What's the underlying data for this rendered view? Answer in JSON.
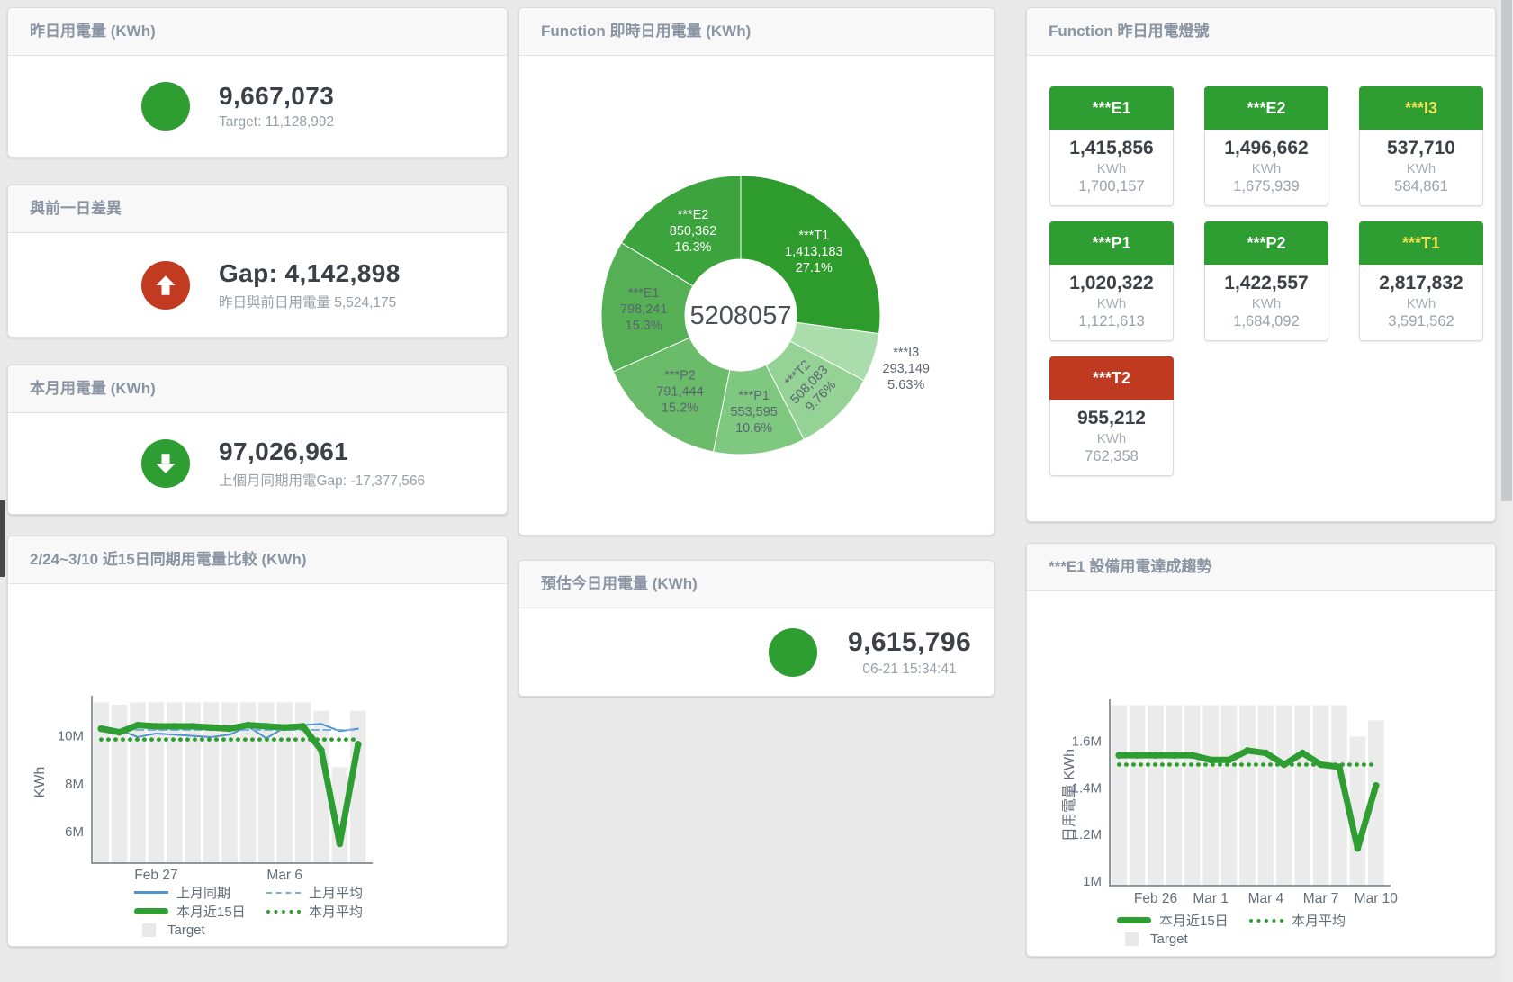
{
  "colors": {
    "green": "#2f9e32",
    "red": "#c23a20",
    "tile_red": "#c03a21",
    "yellow_label": "#f0e355",
    "blue_line": "#5094ce",
    "blue_dashed": "#7cb0dc",
    "target_bar": "#ebebeb",
    "header_text": "#8a94a2"
  },
  "cards": {
    "yesterday": {
      "title": "昨日用電量 (KWh)",
      "value": "9,667,073",
      "sub": "Target: 11,128,992",
      "status_icon": "green-circle"
    },
    "day_gap": {
      "title": "與前一日差異",
      "value": "Gap: 4,142,898",
      "sub": "昨日與前日用電量 5,524,175",
      "status_icon": "red-circle-up-arrow"
    },
    "month": {
      "title": "本月用電量 (KWh)",
      "value": "97,026,961",
      "sub": "上個月同期用電Gap: -17,377,566",
      "status_icon": "green-circle-down-arrow"
    },
    "realtime": {
      "title": "Function 即時日用電量 (KWh)"
    },
    "lights": {
      "title": "Function 昨日用電燈號",
      "tiles": [
        {
          "name": "***E1",
          "value": "1,415,856",
          "unit": "KWh",
          "target": "1,700,157",
          "status": "green",
          "text": "white"
        },
        {
          "name": "***E2",
          "value": "1,496,662",
          "unit": "KWh",
          "target": "1,675,939",
          "status": "green",
          "text": "white"
        },
        {
          "name": "***I3",
          "value": "537,710",
          "unit": "KWh",
          "target": "584,861",
          "status": "green",
          "text": "yellow"
        },
        {
          "name": "***P1",
          "value": "1,020,322",
          "unit": "KWh",
          "target": "1,121,613",
          "status": "green",
          "text": "white"
        },
        {
          "name": "***P2",
          "value": "1,422,557",
          "unit": "KWh",
          "target": "1,684,092",
          "status": "green",
          "text": "white"
        },
        {
          "name": "***T1",
          "value": "2,817,832",
          "unit": "KWh",
          "target": "3,591,562",
          "status": "green",
          "text": "yellow"
        },
        {
          "name": "***T2",
          "value": "955,212",
          "unit": "KWh",
          "target": "762,358",
          "status": "red",
          "text": "white"
        }
      ]
    },
    "compare": {
      "title": "2/24~3/10 近15日同期用電量比較 (KWh)"
    },
    "today": {
      "title": "預估今日用電量 (KWh)",
      "value": "9,615,796",
      "sub": "06-21 15:34:41",
      "status_icon": "green-circle"
    },
    "e1trend": {
      "title": "***E1 設備用電達成趨勢"
    }
  },
  "chart_data": [
    {
      "type": "pie",
      "title": "Function 即時日用電量 (KWh)",
      "center_label": "5208057",
      "legend_position": "none",
      "slices": [
        {
          "name": "***T1",
          "value": 1413183,
          "value_label": "1,413,183",
          "pct": "27.1%",
          "color": "#2d9c2d",
          "label_color": "#ffffff"
        },
        {
          "name": "***I3",
          "value": 293149,
          "value_label": "293,149",
          "pct": "5.63%",
          "color": "#abdcab",
          "label_color": "#5b6570",
          "outside": true
        },
        {
          "name": "***T2",
          "value": 508083,
          "value_label": "508,083",
          "pct": "9.76%",
          "color": "#95d295",
          "label_color": "#5b6570",
          "label_rotate": -46
        },
        {
          "name": "***P1",
          "value": 553595,
          "value_label": "553,595",
          "pct": "10.6%",
          "color": "#7fc87f",
          "label_color": "#5b6570"
        },
        {
          "name": "***P2",
          "value": 791444,
          "value_label": "791,444",
          "pct": "15.2%",
          "color": "#6abc6a",
          "label_color": "#5b6570"
        },
        {
          "name": "***E1",
          "value": 798241,
          "value_label": "798,241",
          "pct": "15.3%",
          "color": "#55b055",
          "label_color": "#5b6570"
        },
        {
          "name": "***E2",
          "value": 850362,
          "value_label": "850,362",
          "pct": "16.3%",
          "color": "#3ca43c",
          "label_color": "#ffffff"
        }
      ]
    },
    {
      "type": "line",
      "title": "2/24~3/10 近15日同期用電量比較 (KWh)",
      "ylabel": "KWh",
      "ymin": 4.69,
      "ymax": 11.45,
      "grid": false,
      "yticks": [
        {
          "v": 6,
          "label": "6M"
        },
        {
          "v": 8,
          "label": "8M"
        },
        {
          "v": 10,
          "label": "10M"
        }
      ],
      "x": [
        "Feb 24",
        "Feb 25",
        "Feb 26",
        "Feb 27",
        "Feb 28",
        "Mar 1",
        "Mar 2",
        "Mar 3",
        "Mar 4",
        "Mar 5",
        "Mar 6",
        "Mar 7",
        "Mar 8",
        "Mar 9",
        "Mar 10"
      ],
      "x_ticks": [
        "Feb 27",
        "Mar 6"
      ],
      "series": [
        {
          "name": "Target",
          "kind": "bar",
          "color": "#ebebeb",
          "values": [
            11.4,
            11.3,
            11.4,
            11.4,
            11.4,
            11.4,
            11.4,
            11.4,
            11.4,
            11.4,
            11.4,
            11.4,
            11.05,
            8.7,
            11.05
          ]
        },
        {
          "name": "上月同期",
          "kind": "line",
          "dash": "solid",
          "width": 2,
          "color": "#5094ce",
          "values": [
            10.4,
            10.25,
            9.95,
            10.1,
            10.05,
            10.0,
            9.95,
            10.05,
            10.4,
            9.9,
            10.35,
            10.45,
            10.5,
            10.2,
            10.3
          ]
        },
        {
          "name": "上月平均",
          "kind": "line",
          "dash": "dashed",
          "width": 2,
          "color": "#7cb0dc",
          "values": [
            10.25,
            10.25,
            10.25,
            10.25,
            10.25,
            10.25,
            10.25,
            10.25,
            10.25,
            10.25,
            10.25,
            10.25,
            10.25,
            10.25,
            10.25
          ]
        },
        {
          "name": "本月近15日",
          "kind": "line",
          "dash": "solid",
          "width": 7,
          "marker": true,
          "color": "#2f9e32",
          "values": [
            10.3,
            10.15,
            10.45,
            10.4,
            10.4,
            10.4,
            10.35,
            10.3,
            10.45,
            10.4,
            10.35,
            10.4,
            9.4,
            5.5,
            9.65
          ]
        },
        {
          "name": "本月平均",
          "kind": "line",
          "dash": "dotted",
          "width": 4.5,
          "color": "#2f9e32",
          "values": [
            9.85,
            9.85,
            9.85,
            9.85,
            9.85,
            9.85,
            9.85,
            9.85,
            9.85,
            9.85,
            9.85,
            9.85,
            9.85,
            9.85,
            9.85
          ]
        }
      ],
      "legend": [
        [
          {
            "label": "上月同期",
            "swatch": "line",
            "color": "#5094ce"
          },
          {
            "label": "上月平均",
            "swatch": "dashed",
            "color": "#7cb0dc"
          }
        ],
        [
          {
            "label": "本月近15日",
            "swatch": "thick",
            "color": "#2f9e32"
          },
          {
            "label": "本月平均",
            "swatch": "dotted",
            "color": "#2f9e32"
          }
        ],
        [
          {
            "label": "Target",
            "swatch": "square",
            "color": "#e8e8e8"
          }
        ]
      ]
    },
    {
      "type": "line",
      "title": "***E1 設備用電達成趨勢",
      "ylabel": "日用電量 KWh",
      "ymin": 0.98,
      "ymax": 1.757,
      "grid": false,
      "yticks": [
        {
          "v": 1,
          "label": "1M"
        },
        {
          "v": 1.2,
          "label": "1.2M"
        },
        {
          "v": 1.4,
          "label": "1.4M"
        },
        {
          "v": 1.6,
          "label": "1.6M"
        }
      ],
      "x": [
        "Feb 24",
        "Feb 25",
        "Feb 26",
        "Feb 27",
        "Feb 28",
        "Mar 1",
        "Mar 2",
        "Mar 3",
        "Mar 4",
        "Mar 5",
        "Mar 6",
        "Mar 7",
        "Mar 8",
        "Mar 9",
        "Mar 10"
      ],
      "x_ticks": [
        "Feb 26",
        "Mar 1",
        "Mar 4",
        "Mar 7",
        "Mar 10"
      ],
      "series": [
        {
          "name": "Target",
          "kind": "bar",
          "color": "#ebebeb",
          "values": [
            1.755,
            1.755,
            1.755,
            1.755,
            1.755,
            1.755,
            1.755,
            1.755,
            1.755,
            1.755,
            1.755,
            1.755,
            1.755,
            1.62,
            1.69
          ]
        },
        {
          "name": "本月近15日",
          "kind": "line",
          "dash": "solid",
          "width": 7,
          "marker": true,
          "color": "#2f9e32",
          "values": [
            1.54,
            1.54,
            1.54,
            1.54,
            1.54,
            1.52,
            1.52,
            1.56,
            1.55,
            1.5,
            1.55,
            1.5,
            1.49,
            1.14,
            1.41
          ]
        },
        {
          "name": "本月平均",
          "kind": "line",
          "dash": "dotted",
          "width": 4.5,
          "color": "#2f9e32",
          "values": [
            1.5,
            1.5,
            1.5,
            1.5,
            1.5,
            1.5,
            1.5,
            1.5,
            1.5,
            1.5,
            1.5,
            1.5,
            1.5,
            1.5,
            1.5
          ]
        }
      ],
      "legend": [
        [
          {
            "label": "本月近15日",
            "swatch": "thick",
            "color": "#2f9e32"
          },
          {
            "label": "本月平均",
            "swatch": "dotted",
            "color": "#2f9e32"
          }
        ],
        [
          {
            "label": "Target",
            "swatch": "square",
            "color": "#e8e8e8"
          }
        ]
      ]
    }
  ]
}
